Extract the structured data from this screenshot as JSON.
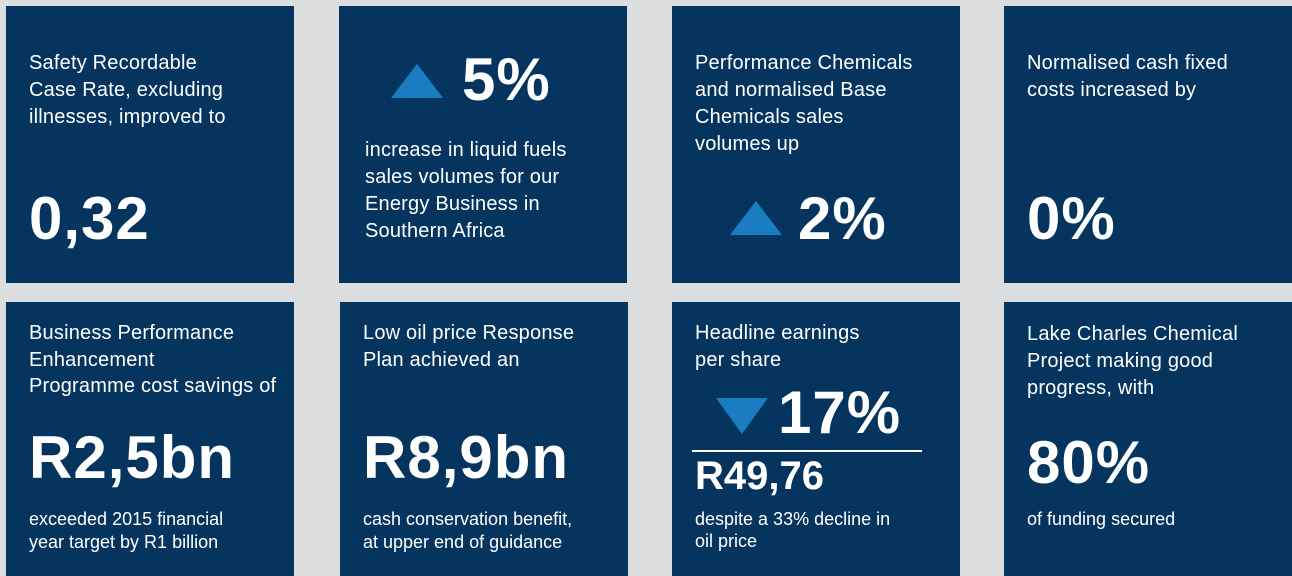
{
  "tiles": [
    {
      "label": [
        "Safety Recordable",
        "Case Rate, excluding",
        "illnesses, improved to"
      ],
      "figure": "0,32"
    },
    {
      "figure": "5%",
      "label": [
        "increase in liquid fuels",
        "sales volumes for our",
        "Energy Business in",
        "Southern Africa"
      ]
    },
    {
      "label": [
        "Performance Chemicals",
        "and normalised Base",
        "Chemicals sales",
        "volumes up"
      ],
      "figure": "2%"
    },
    {
      "label": [
        "Normalised cash fixed",
        "costs increased by"
      ],
      "figure": "0%"
    },
    {
      "label": [
        "Business Performance",
        "Enhancement",
        "Programme cost savings of"
      ],
      "figure": "R2,5bn",
      "note": [
        "exceeded 2015 financial",
        "year target by R1 billion"
      ]
    },
    {
      "label": [
        "Low oil price Response",
        "Plan achieved an"
      ],
      "figure": "R8,9bn",
      "note": [
        "cash conservation benefit,",
        "at upper end of guidance"
      ]
    },
    {
      "label": [
        "Headline earnings",
        "per share"
      ],
      "figure": "17%",
      "subfigure": "R49,76",
      "note": [
        "despite a 33% decline in",
        "oil price"
      ]
    },
    {
      "label": [
        "Lake Charles Chemical",
        "Project making good",
        "progress, with"
      ],
      "figure": "80%",
      "note": [
        "of funding secured"
      ]
    }
  ]
}
